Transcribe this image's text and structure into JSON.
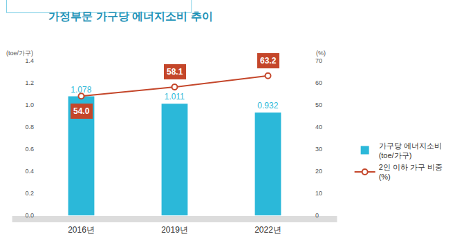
{
  "chart_data": {
    "type": "bar",
    "title": "가정부문 가구당 에너지소비 추이",
    "ylabel": "(toe/가구)",
    "y2label": "(%)",
    "categories": [
      "2016년",
      "2019년",
      "2022년"
    ],
    "series": [
      {
        "name": "가구당 에너지소비\n(toe/가구)",
        "type": "bar",
        "color": "#2bb8d9",
        "values": [
          1.078,
          1.011,
          0.932
        ]
      },
      {
        "name": "2인 이하 가구 비중\n(%)",
        "type": "line",
        "axis": "y2",
        "color": "#c4462a",
        "marker": "circle",
        "line_style": "solid",
        "values": [
          54.0,
          58.1,
          63.2
        ],
        "value_labels": [
          "54.0",
          "58.1",
          "63.2"
        ]
      }
    ],
    "ylim": [
      0,
      1.4
    ],
    "yticks": [
      {
        "value": 0,
        "label": "0.0"
      },
      0.2,
      0.4,
      0.6,
      0.8,
      {
        "value": 1,
        "label": "1.0"
      },
      1.2,
      1.4
    ],
    "y2lim": [
      0,
      70
    ],
    "y2ticks": [
      0,
      10,
      20,
      30,
      40,
      50,
      60,
      70
    ],
    "grid": false,
    "data_labels": true,
    "legend": "right"
  }
}
